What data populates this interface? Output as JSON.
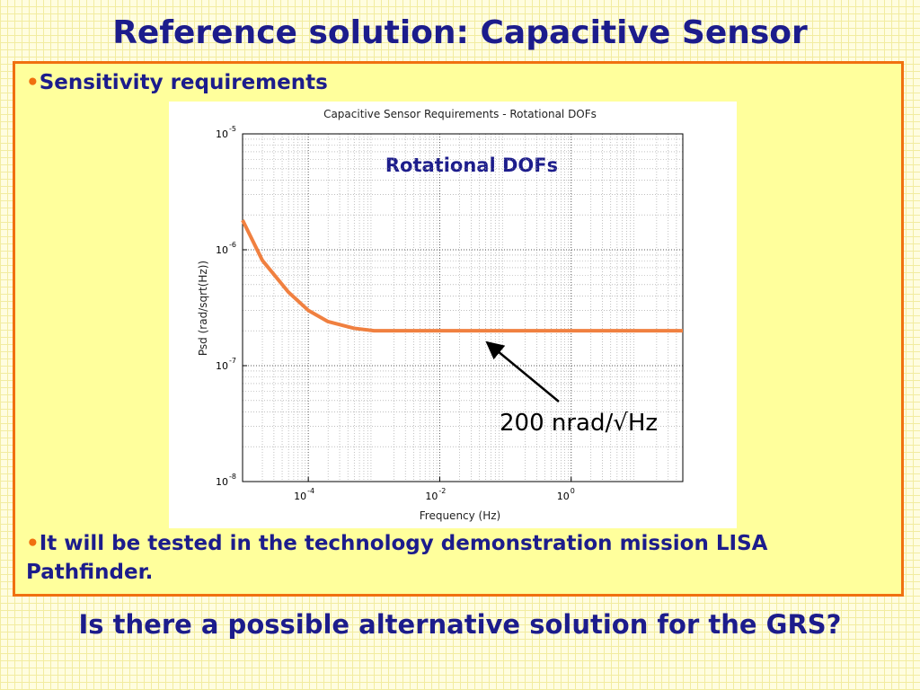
{
  "slide": {
    "title": "Reference solution: Capacitive Sensor",
    "bullets": [
      "Sensitivity requirements",
      "It will be tested in the technology demonstration mission LISA Pathfinder."
    ],
    "question": "Is there a possible alternative solution for the GRS?"
  },
  "chart_data": {
    "type": "line",
    "title": "Capacitive Sensor Requirements - Rotational DOFs",
    "x_label": "Frequency (Hz)",
    "y_label": "Psd (rad/sqrt(Hz))",
    "x_log": true,
    "y_log": true,
    "grid": true,
    "xlim": [
      1e-05,
      50
    ],
    "ylim": [
      1e-08,
      1e-05
    ],
    "xticks": [
      {
        "value": 0.0001,
        "label": "10",
        "exponent": "-4"
      },
      {
        "value": 0.01,
        "label": "10",
        "exponent": "-2"
      },
      {
        "value": 1,
        "label": "10",
        "exponent": "0"
      }
    ],
    "yticks": [
      {
        "value": 1e-08,
        "label": "10",
        "exponent": "-8"
      },
      {
        "value": 1e-07,
        "label": "10",
        "exponent": "-7"
      },
      {
        "value": 1e-06,
        "label": "10",
        "exponent": "-6"
      },
      {
        "value": 1e-05,
        "label": "10",
        "exponent": "-5"
      }
    ],
    "x": [
      1e-05,
      2e-05,
      5e-05,
      0.0001,
      0.0002,
      0.0005,
      0.001,
      0.01,
      1,
      50
    ],
    "series": [
      {
        "name": "Rotational DOFs",
        "color": "#f08040",
        "values": [
          1.8e-06,
          8.1e-07,
          4.3e-07,
          3e-07,
          2.4e-07,
          2.1e-07,
          2e-07,
          2e-07,
          2e-07,
          2e-07
        ]
      }
    ],
    "annotation": "200 nrad/√Hz"
  }
}
